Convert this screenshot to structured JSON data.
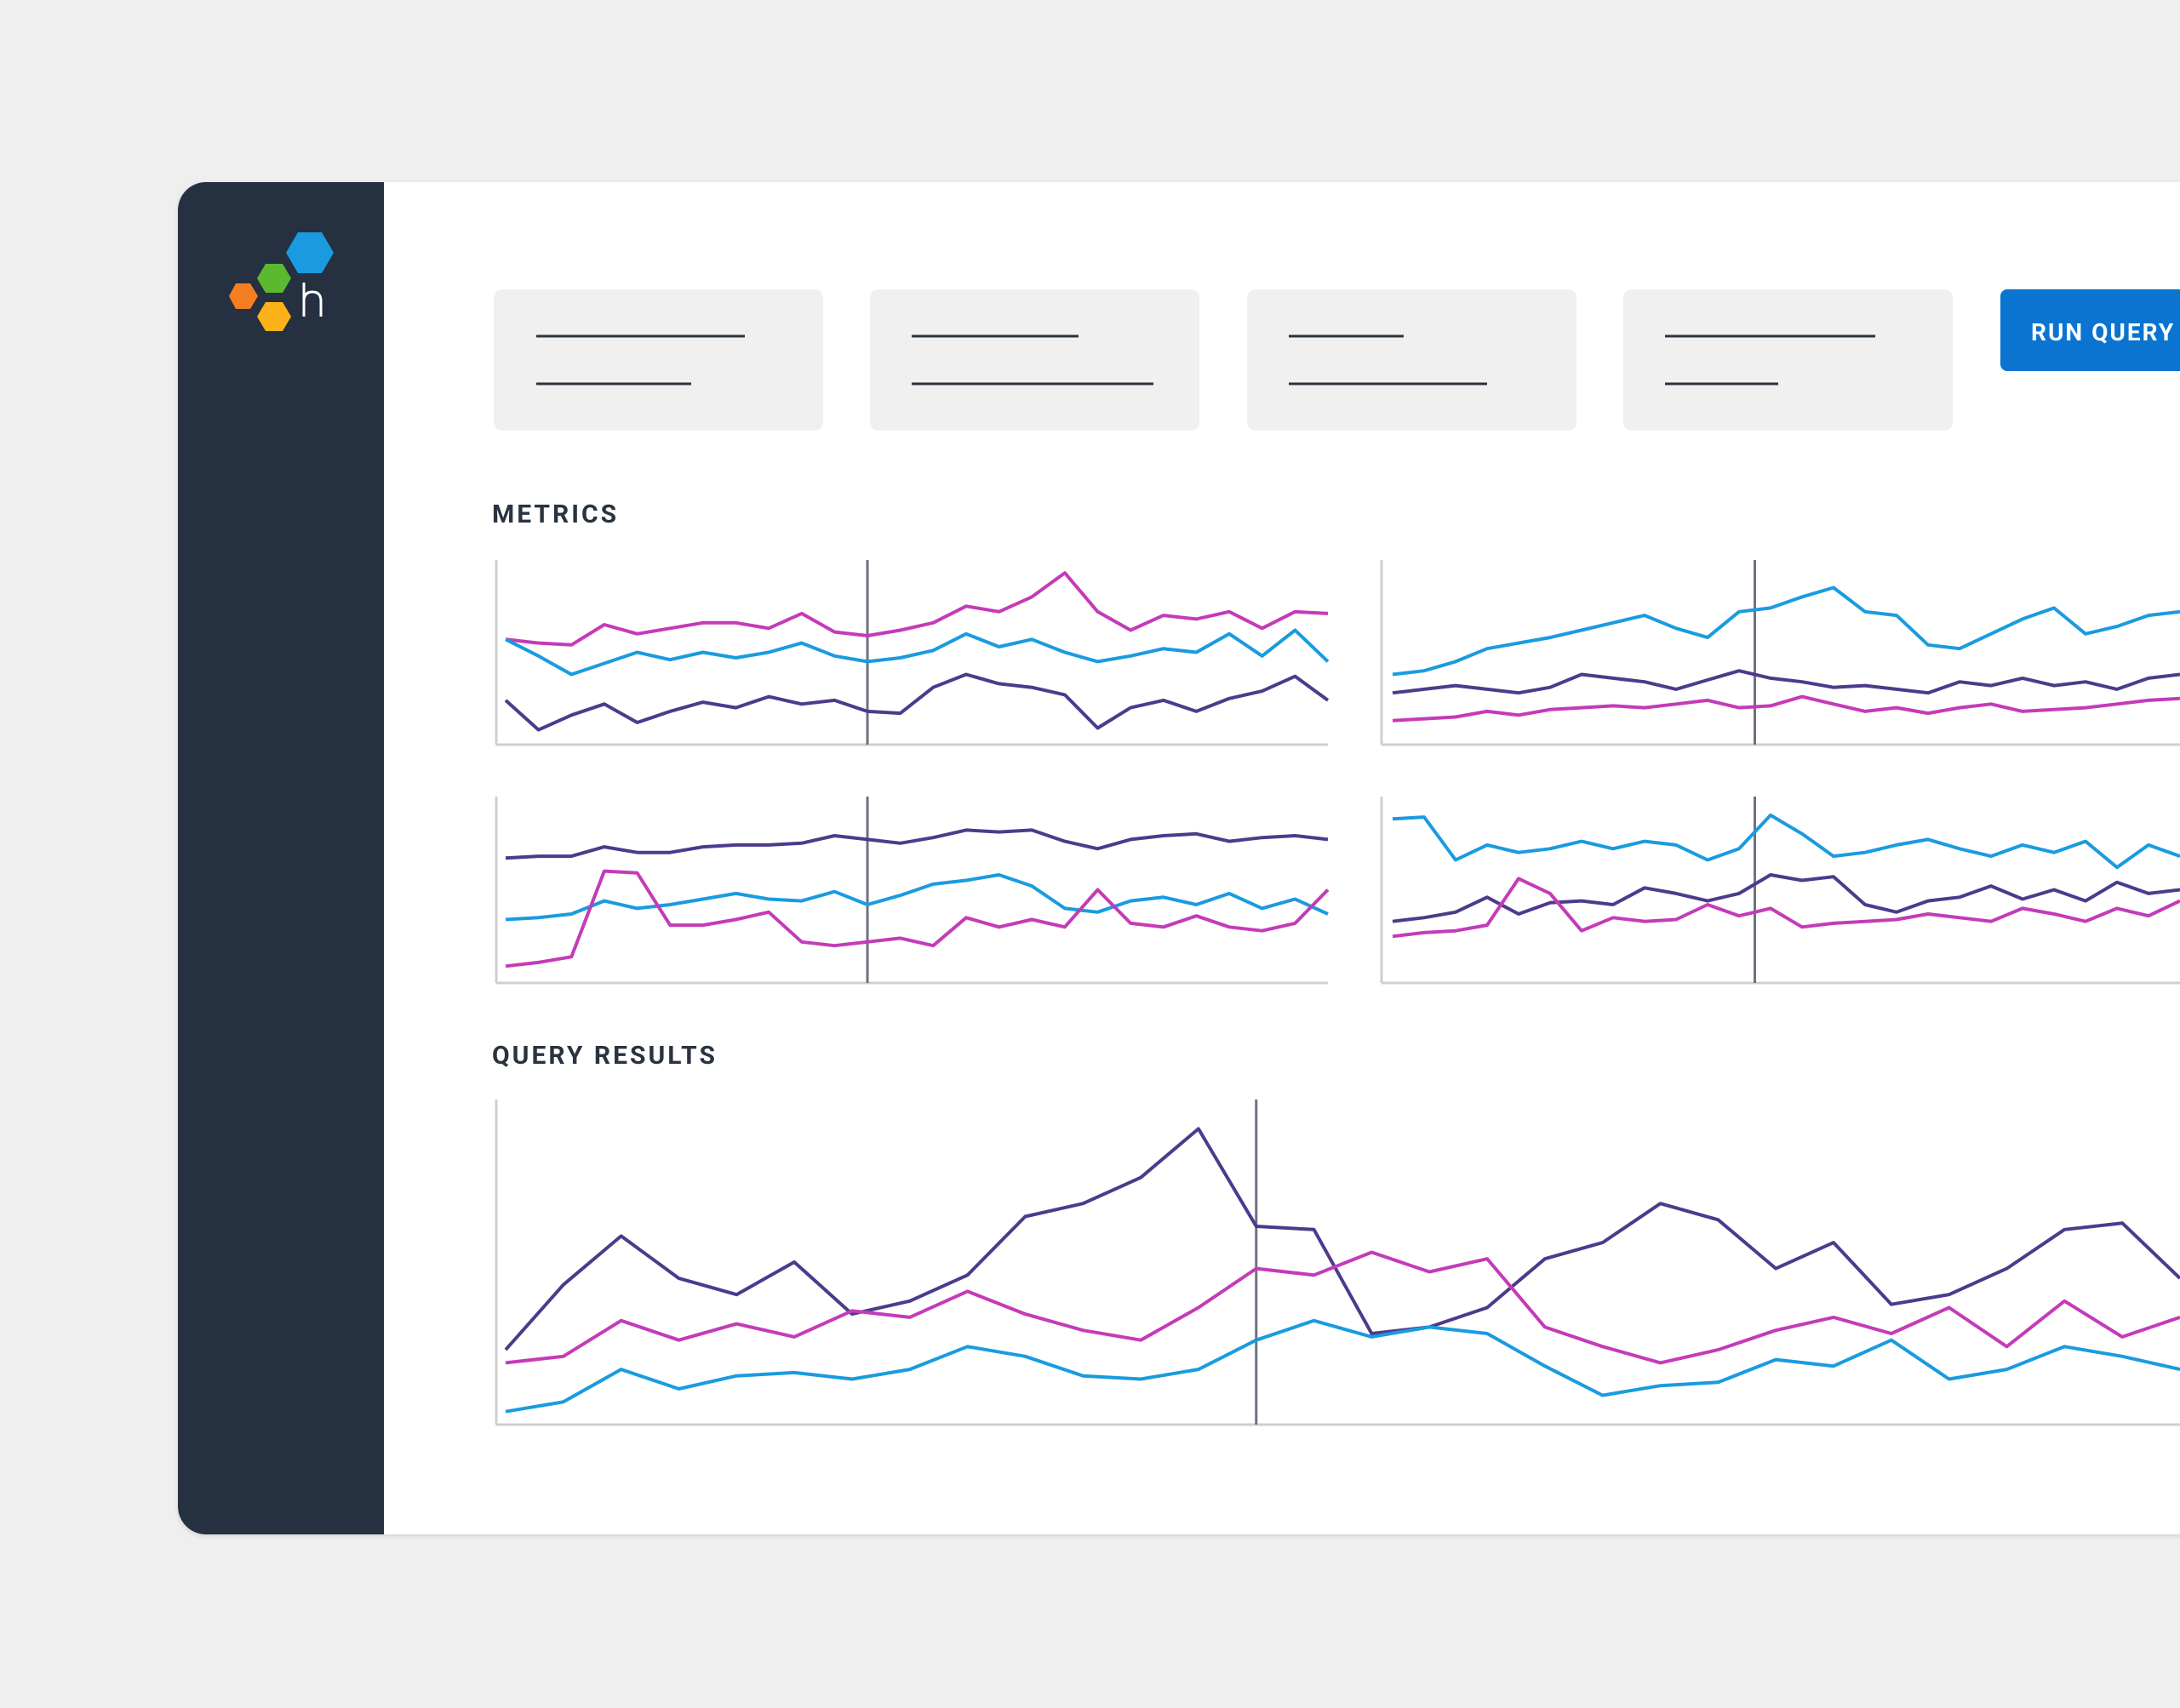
{
  "button": "RUN QUERY",
  "metrics": {
    "title": "METRICS",
    "charts": [
      {
        "type": "line",
        "ylim": [
          0,
          100
        ],
        "marker": 11,
        "series": [
          {
            "color": "#c43bb8",
            "values": [
              57,
              55,
              54,
              65,
              60,
              63,
              66,
              66,
              63,
              71,
              61,
              59,
              62,
              66,
              75,
              72,
              80,
              93,
              72,
              62,
              70,
              68,
              72,
              63,
              72,
              71
            ]
          },
          {
            "color": "#1a9be0",
            "values": [
              57,
              48,
              38,
              44,
              50,
              46,
              50,
              47,
              50,
              55,
              48,
              45,
              47,
              51,
              60,
              53,
              57,
              50,
              45,
              48,
              52,
              50,
              60,
              48,
              62,
              45
            ]
          },
          {
            "color": "#4e3a8c",
            "values": [
              24,
              8,
              16,
              22,
              12,
              18,
              23,
              20,
              26,
              22,
              24,
              18,
              17,
              31,
              38,
              33,
              31,
              27,
              9,
              20,
              24,
              18,
              25,
              29,
              37,
              24
            ]
          }
        ]
      },
      {
        "type": "line",
        "ylim": [
          0,
          100
        ],
        "marker": 11.5,
        "series": [
          {
            "color": "#1a9be0",
            "values": [
              38,
              40,
              45,
              52,
              55,
              58,
              62,
              66,
              70,
              63,
              58,
              72,
              74,
              80,
              85,
              72,
              70,
              54,
              52,
              60,
              68,
              74,
              60,
              64,
              70,
              72
            ]
          },
          {
            "color": "#4e3a8c",
            "values": [
              28,
              30,
              32,
              30,
              28,
              31,
              38,
              36,
              34,
              30,
              35,
              40,
              36,
              34,
              31,
              32,
              30,
              28,
              34,
              32,
              36,
              32,
              34,
              30,
              36,
              38
            ]
          },
          {
            "color": "#c43bb8",
            "values": [
              13,
              14,
              15,
              18,
              16,
              19,
              20,
              21,
              20,
              22,
              24,
              20,
              21,
              26,
              22,
              18,
              20,
              17,
              20,
              22,
              18,
              19,
              20,
              22,
              24,
              25
            ]
          }
        ]
      },
      {
        "type": "line",
        "ylim": [
          0,
          100
        ],
        "marker": 11,
        "series": [
          {
            "color": "#4e3a8c",
            "values": [
              67,
              68,
              68,
              73,
              70,
              70,
              73,
              74,
              74,
              75,
              79,
              77,
              75,
              78,
              82,
              81,
              82,
              76,
              72,
              77,
              79,
              80,
              76,
              78,
              79,
              77
            ]
          },
          {
            "color": "#1a9be0",
            "values": [
              34,
              35,
              37,
              44,
              40,
              42,
              45,
              48,
              45,
              44,
              49,
              42,
              47,
              53,
              55,
              58,
              52,
              40,
              38,
              44,
              46,
              42,
              48,
              40,
              45,
              37
            ]
          },
          {
            "color": "#c43bb8",
            "values": [
              9,
              11,
              14,
              60,
              59,
              31,
              31,
              34,
              38,
              22,
              20,
              22,
              24,
              20,
              35,
              30,
              34,
              30,
              50,
              32,
              30,
              36,
              30,
              28,
              32,
              50
            ]
          }
        ]
      },
      {
        "type": "line",
        "ylim": [
          0,
          100
        ],
        "marker": 11.5,
        "series": [
          {
            "color": "#1a9be0",
            "values": [
              88,
              89,
              66,
              74,
              70,
              72,
              76,
              72,
              76,
              74,
              66,
              72,
              90,
              80,
              68,
              70,
              74,
              77,
              72,
              68,
              74,
              70,
              76,
              62,
              74,
              68
            ]
          },
          {
            "color": "#4e3a8c",
            "values": [
              33,
              35,
              38,
              46,
              37,
              43,
              44,
              42,
              51,
              48,
              44,
              48,
              58,
              55,
              57,
              42,
              38,
              44,
              46,
              52,
              45,
              50,
              44,
              54,
              48,
              50
            ]
          },
          {
            "color": "#c43bb8",
            "values": [
              25,
              27,
              28,
              31,
              56,
              48,
              28,
              35,
              33,
              34,
              42,
              36,
              40,
              30,
              32,
              33,
              34,
              37,
              35,
              33,
              40,
              37,
              33,
              40,
              36,
              44
            ]
          }
        ]
      }
    ]
  },
  "query_results": {
    "title": "QUERY RESULTS",
    "chart": {
      "type": "line",
      "ylim": [
        0,
        100
      ],
      "marker": 13,
      "series": [
        {
          "color": "#4e3a8c",
          "values": [
            23,
            43,
            58,
            45,
            40,
            50,
            34,
            38,
            46,
            64,
            68,
            76,
            91,
            61,
            60,
            28,
            30,
            36,
            51,
            56,
            68,
            63,
            48,
            56,
            37,
            40,
            48,
            60,
            62,
            45
          ]
        },
        {
          "color": "#c43bb8",
          "values": [
            19,
            21,
            32,
            26,
            31,
            27,
            35,
            33,
            41,
            34,
            29,
            26,
            36,
            48,
            46,
            53,
            47,
            51,
            30,
            24,
            19,
            23,
            29,
            33,
            28,
            36,
            24,
            38,
            27,
            33
          ]
        },
        {
          "color": "#1a9be0",
          "values": [
            4,
            7,
            17,
            11,
            15,
            16,
            14,
            17,
            24,
            21,
            15,
            14,
            17,
            26,
            32,
            27,
            30,
            28,
            18,
            9,
            12,
            13,
            20,
            18,
            26,
            14,
            17,
            24,
            21,
            17
          ]
        }
      ]
    }
  }
}
